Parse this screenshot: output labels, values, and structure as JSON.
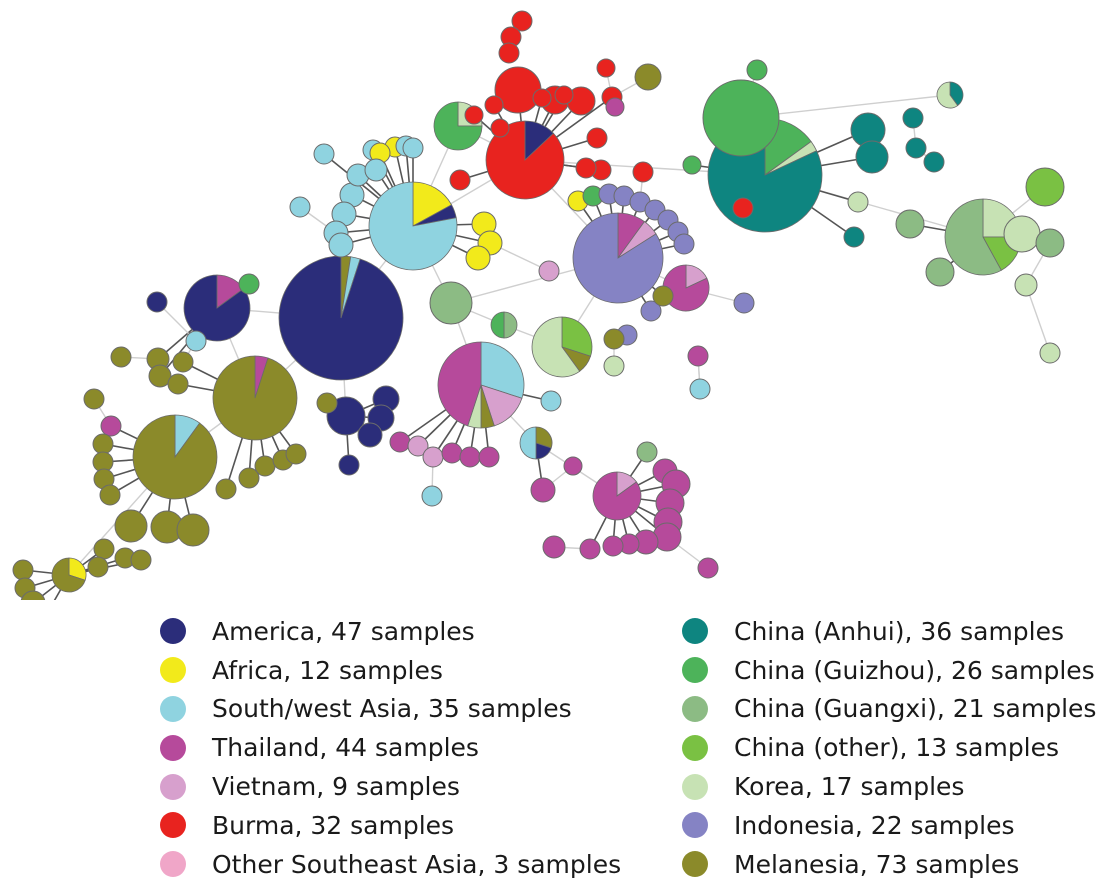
{
  "legend": {
    "left": [
      {
        "key": "america",
        "label": "America, 47 samples",
        "color": "#2b2d7a"
      },
      {
        "key": "africa",
        "label": "Africa, 12 samples",
        "color": "#f2ea1b"
      },
      {
        "key": "swasia",
        "label": "South/west Asia, 35 samples",
        "color": "#8fd3e0"
      },
      {
        "key": "thailand",
        "label": "Thailand, 44 samples",
        "color": "#b64a9b"
      },
      {
        "key": "vietnam",
        "label": "Vietnam, 9 samples",
        "color": "#d7a0cd"
      },
      {
        "key": "burma",
        "label": "Burma, 32 samples",
        "color": "#e8231f"
      },
      {
        "key": "osea",
        "label": "Other Southeast Asia, 3 samples",
        "color": "#f0a6c8"
      }
    ],
    "right": [
      {
        "key": "anhui",
        "label": "China (Anhui), 36 samples",
        "color": "#0e8580"
      },
      {
        "key": "guizhou",
        "label": "China (Guizhou), 26 samples",
        "color": "#4db35a"
      },
      {
        "key": "guangxi",
        "label": "China (Guangxi), 21 samples",
        "color": "#8cbb84"
      },
      {
        "key": "cother",
        "label": "China (other), 13 samples",
        "color": "#7ac143"
      },
      {
        "key": "korea",
        "label": "Korea, 17 samples",
        "color": "#c7e2b4"
      },
      {
        "key": "indonesia",
        "label": "Indonesia, 22 samples",
        "color": "#8583c4"
      },
      {
        "key": "melanesia",
        "label": "Melanesia, 73 samples",
        "color": "#8b8a2a"
      }
    ]
  }
}
